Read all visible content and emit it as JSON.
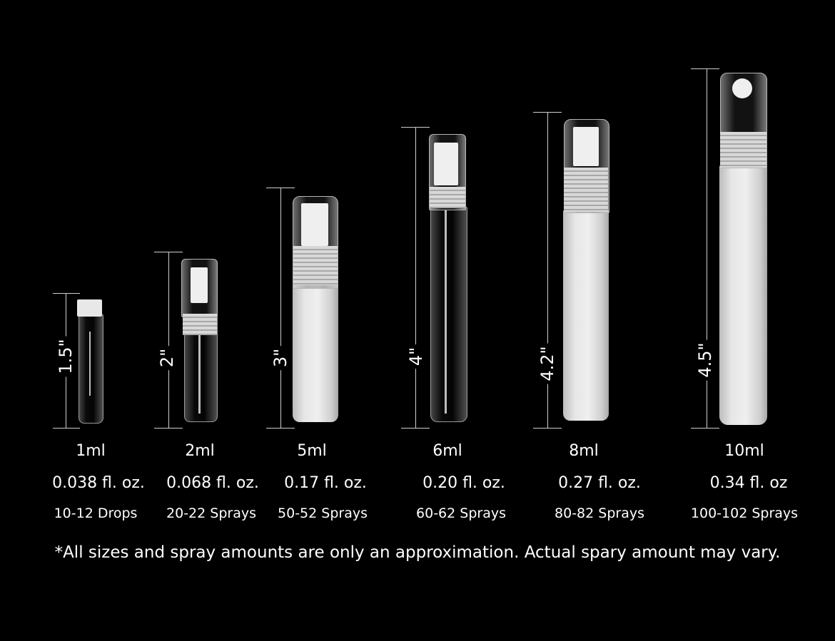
{
  "items": [
    {
      "height": "1.5\"",
      "volume": "1ml",
      "fl_oz": "0.038 fl. oz.",
      "amount": "10-12 Drops",
      "style": "clear vial"
    },
    {
      "height": "2\"",
      "volume": "2ml",
      "fl_oz": "0.068 fl. oz.",
      "amount": "20-22 Sprays",
      "style": "clear spray"
    },
    {
      "height": "3\"",
      "volume": "5ml",
      "fl_oz": "0.17 fl. oz.",
      "amount": "50-52 Sprays",
      "style": "frosted spray"
    },
    {
      "height": "4\"",
      "volume": "6ml",
      "fl_oz": "0.20 fl. oz.",
      "amount": "60-62 Sprays",
      "style": "clear spray"
    },
    {
      "height": "4.2\"",
      "volume": "8ml",
      "fl_oz": "0.27 fl. oz.",
      "amount": "80-82 Sprays",
      "style": "frosted spray"
    },
    {
      "height": "4.5\"",
      "volume": "10ml",
      "fl_oz": "0.34 fl. oz",
      "amount": "100-102 Sprays",
      "style": "frosted spray"
    }
  ],
  "footnote": "*All sizes and spray amounts are only an approximation. Actual spary amount may vary.",
  "colors": {
    "background": "#000000",
    "text": "#ffffff"
  }
}
